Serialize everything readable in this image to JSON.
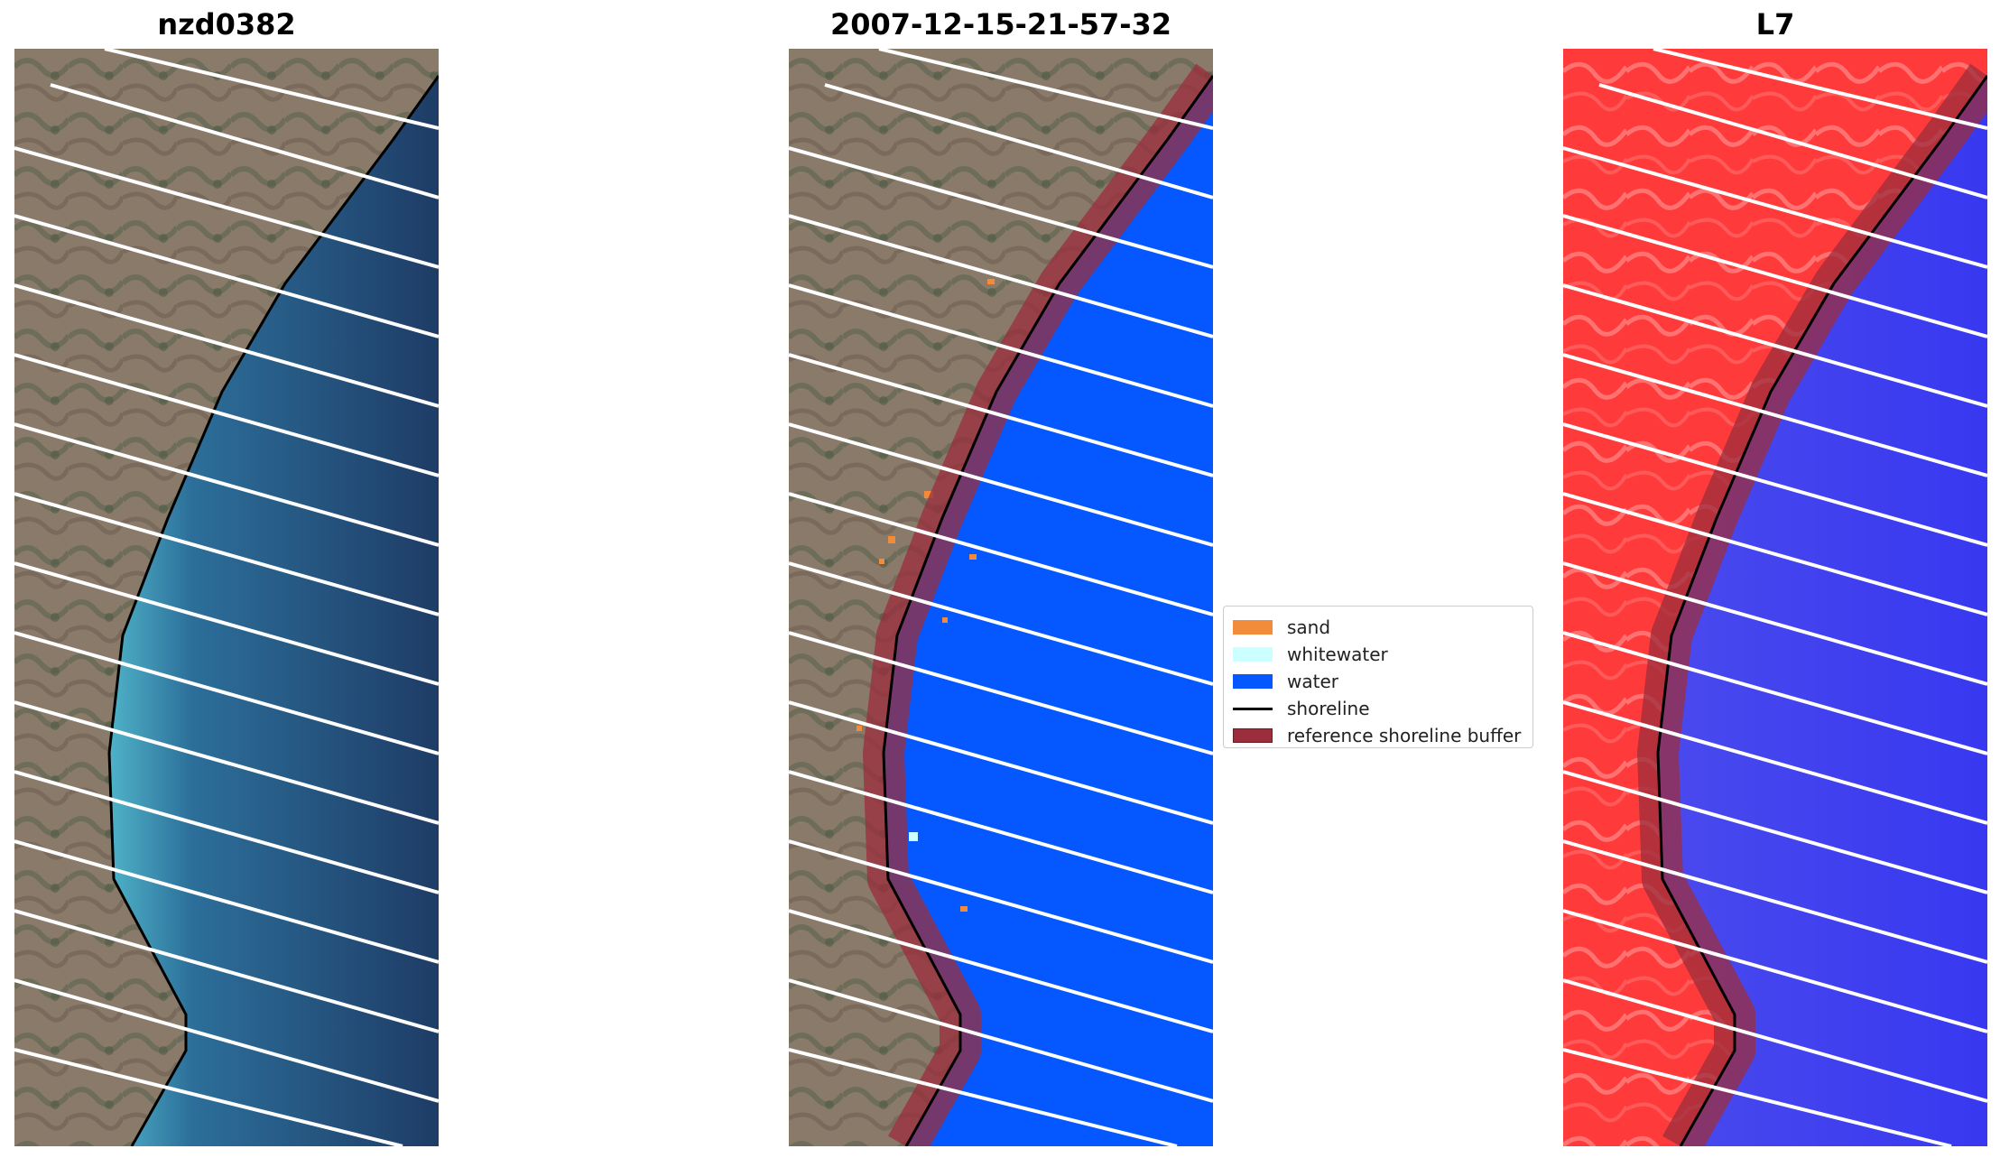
{
  "panels": [
    {
      "title": "nzd0382",
      "icon": "rgb-satellite-image"
    },
    {
      "title": "2007-12-15-21-57-32",
      "icon": "classified-image"
    },
    {
      "title": "L7",
      "icon": "mndwi-image"
    }
  ],
  "legend": {
    "items": [
      {
        "label": "sand",
        "color": "#f28b3a"
      },
      {
        "label": "whitewater",
        "color": "#ccffff"
      },
      {
        "label": "water",
        "color": "#0557ff"
      },
      {
        "label": "shoreline",
        "color": "#000000"
      },
      {
        "label": "reference shoreline buffer",
        "color": "#9b2d3c"
      }
    ]
  },
  "colors": {
    "land": "#8a7a6a",
    "ocean_dark": "#1e3c66",
    "ocean_light": "#3f9cc0",
    "water_class": "#0557ff",
    "land_index": "#ff3535",
    "water_index": "#3a3af0",
    "buffer": "#9b2d3c"
  }
}
